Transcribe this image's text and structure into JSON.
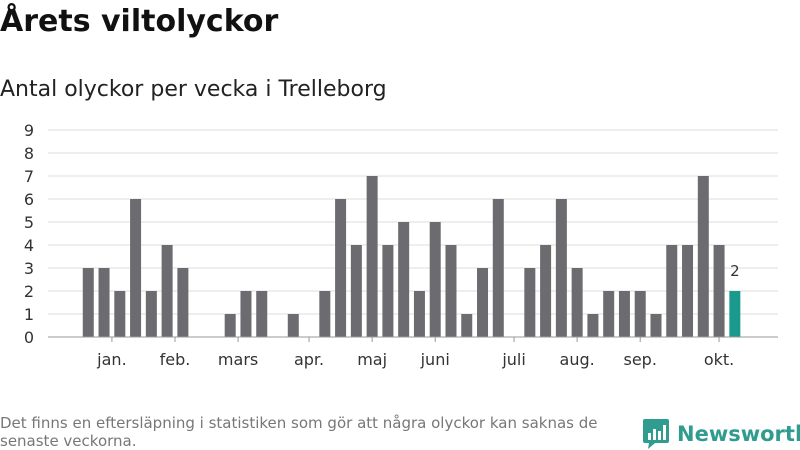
{
  "header": {
    "title": "Årets viltolyckor",
    "subtitle": "Antal olyckor per vecka i Trelleborg"
  },
  "footer": {
    "note": "Det finns en eftersläpning i statistiken som gör att några olyckor kan saknas de senaste veckorna.",
    "brand": "Newsworthy",
    "logo_icon": "newsworthy-logo-icon"
  },
  "colors": {
    "bar": "#6b6b70",
    "highlight": "#1a9a8c",
    "grid": "#dddddd",
    "brand": "#2f9c8f"
  },
  "chart_data": {
    "type": "bar",
    "x_unit": "week",
    "ylim": [
      0,
      9
    ],
    "yticks": [
      0,
      1,
      2,
      3,
      4,
      5,
      6,
      7,
      8,
      9
    ],
    "grid": true,
    "values": [
      null,
      3,
      3,
      2,
      6,
      2,
      4,
      3,
      0,
      0,
      1,
      2,
      2,
      0,
      1,
      0,
      2,
      6,
      4,
      7,
      4,
      5,
      2,
      5,
      4,
      1,
      3,
      6,
      0,
      3,
      4,
      6,
      3,
      1,
      2,
      2,
      2,
      1,
      4,
      4,
      7,
      4,
      2
    ],
    "highlight_index": 42,
    "annotation": {
      "index": 42,
      "text": "2"
    },
    "month_labels": [
      {
        "label": "jan.",
        "week_index": 2.5
      },
      {
        "label": "feb.",
        "week_index": 6.5
      },
      {
        "label": "mars",
        "week_index": 10.5
      },
      {
        "label": "apr.",
        "week_index": 15
      },
      {
        "label": "maj",
        "week_index": 19
      },
      {
        "label": "juni",
        "week_index": 23
      },
      {
        "label": "juli",
        "week_index": 28
      },
      {
        "label": "aug.",
        "week_index": 32
      },
      {
        "label": "sep.",
        "week_index": 36
      },
      {
        "label": "okt.",
        "week_index": 41
      }
    ]
  }
}
